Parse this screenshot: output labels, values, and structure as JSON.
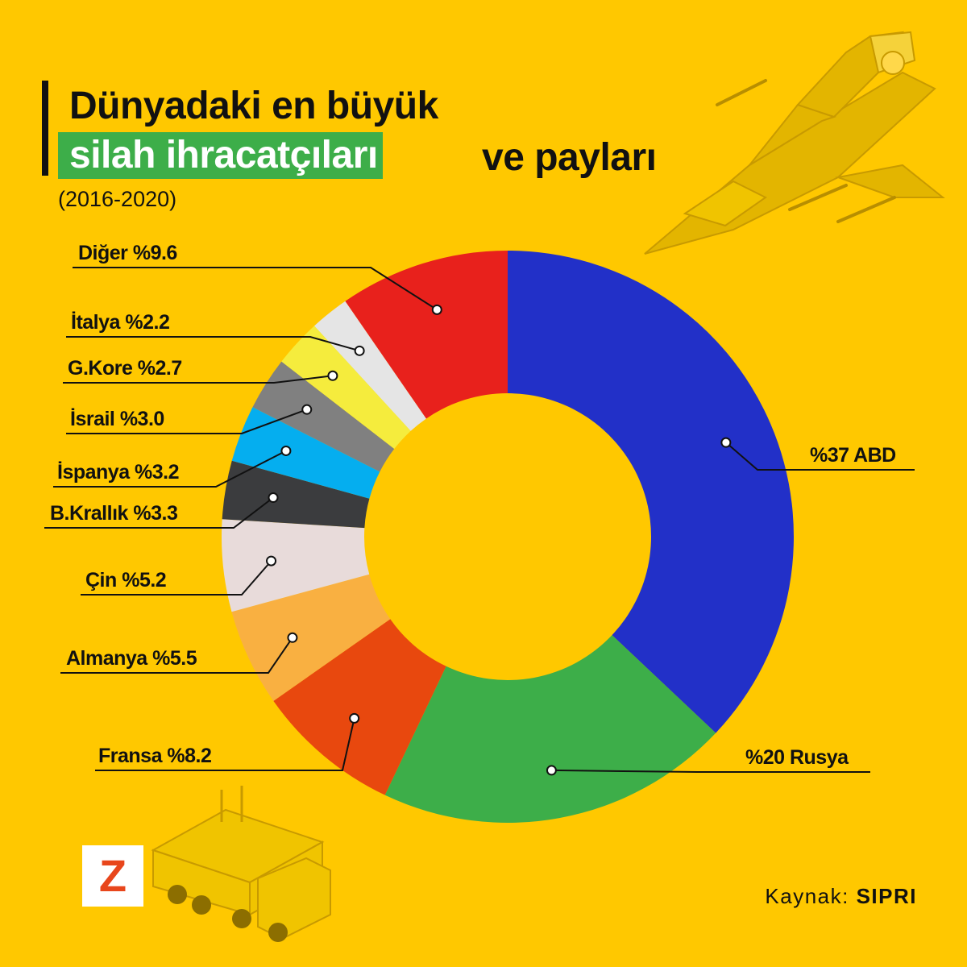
{
  "title": {
    "line1": "Dünyadaki en büyük",
    "highlight": "silah ihracatçıları",
    "line2_rest": "ve payları"
  },
  "subtitle": "(2016-2020)",
  "source": {
    "label": "Kaynak:",
    "value": "SIPRI"
  },
  "logo": {
    "letter": "Z"
  },
  "colors": {
    "background": "#FFC800",
    "highlight": "#3DAE49",
    "logo_letter": "#E8461C"
  },
  "icons": [
    "fighter-jet-illustration",
    "military-truck-illustration"
  ],
  "chart_data": {
    "type": "pie",
    "variant": "donut",
    "start_angle_deg": 0,
    "direction": "clockwise",
    "slices": [
      {
        "name": "ABD",
        "value": 37,
        "label": "%37 ABD",
        "color": "#2230C8"
      },
      {
        "name": "Rusya",
        "value": 20,
        "label": "%20  Rusya",
        "color": "#3DAE49"
      },
      {
        "name": "Fransa",
        "value": 8.2,
        "label": "Fransa  %8.2",
        "color": "#E8480E"
      },
      {
        "name": "Almanya",
        "value": 5.5,
        "label": "Almanya %5.5",
        "color": "#F9B041"
      },
      {
        "name": "Çin",
        "value": 5.2,
        "label": "Çin %5.2",
        "color": "#E8DBDA"
      },
      {
        "name": "B.Krallık",
        "value": 3.3,
        "label": "B.Krallık  %3.3",
        "color": "#3B3C3E"
      },
      {
        "name": "İspanya",
        "value": 3.2,
        "label": "İspanya %3.2",
        "color": "#05AEEF"
      },
      {
        "name": "İsrail",
        "value": 3.0,
        "label": "İsrail  %3.0",
        "color": "#808080"
      },
      {
        "name": "G.Kore",
        "value": 2.7,
        "label": "G.Kore %2.7",
        "color": "#F5EC3D"
      },
      {
        "name": "İtalya",
        "value": 2.2,
        "label": "İtalya %2.2",
        "color": "#E5E5E5"
      },
      {
        "name": "Diğer",
        "value": 9.6,
        "label": "Diğer  %9.6",
        "color": "#E8211C"
      }
    ]
  }
}
